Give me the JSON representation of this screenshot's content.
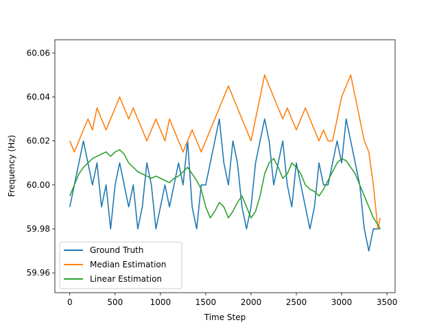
{
  "chart_data": {
    "type": "line",
    "title": "",
    "xlabel": "Time Step",
    "ylabel": "Frequency (Hz)",
    "xlim": [
      -165,
      3590
    ],
    "ylim": [
      59.951,
      60.066
    ],
    "xticks": [
      0,
      500,
      1000,
      1500,
      2000,
      2500,
      3000,
      3500
    ],
    "yticks": [
      59.96,
      59.98,
      60.0,
      60.02,
      60.04,
      60.06
    ],
    "xtick_labels": [
      "0",
      "500",
      "1000",
      "1500",
      "2000",
      "2500",
      "3000",
      "3500"
    ],
    "ytick_labels": [
      "59.96",
      "59.98",
      "60.00",
      "60.02",
      "60.04",
      "60.06"
    ],
    "grid": false,
    "legend_position": "lower-left",
    "series": [
      {
        "name": "Ground Truth",
        "color": "#1f77b4",
        "x": [
          0,
          50,
          100,
          150,
          200,
          250,
          300,
          350,
          400,
          450,
          500,
          550,
          600,
          650,
          700,
          750,
          800,
          850,
          900,
          950,
          1000,
          1050,
          1100,
          1150,
          1200,
          1250,
          1300,
          1350,
          1400,
          1450,
          1500,
          1550,
          1600,
          1650,
          1700,
          1750,
          1800,
          1850,
          1900,
          1950,
          2000,
          2050,
          2100,
          2150,
          2200,
          2250,
          2300,
          2350,
          2400,
          2450,
          2500,
          2550,
          2600,
          2650,
          2700,
          2750,
          2800,
          2850,
          2900,
          2950,
          3000,
          3050,
          3100,
          3150,
          3200,
          3250,
          3300,
          3350,
          3400,
          3425
        ],
        "values": [
          59.99,
          60.0,
          60.01,
          60.02,
          60.01,
          60.0,
          60.01,
          59.99,
          60.0,
          59.98,
          60.0,
          60.01,
          60.0,
          59.99,
          60.0,
          59.98,
          59.99,
          60.01,
          60.0,
          59.98,
          59.99,
          60.0,
          59.99,
          60.0,
          60.01,
          60.0,
          60.02,
          59.99,
          59.98,
          60.0,
          60.0,
          60.01,
          60.02,
          60.03,
          60.01,
          60.0,
          60.02,
          60.01,
          59.99,
          59.98,
          59.99,
          60.01,
          60.02,
          60.03,
          60.02,
          60.0,
          60.01,
          60.02,
          60.0,
          59.99,
          60.01,
          60.0,
          59.99,
          59.98,
          59.99,
          60.01,
          60.0,
          60.0,
          60.01,
          60.02,
          60.01,
          60.03,
          60.02,
          60.01,
          60.0,
          59.98,
          59.97,
          59.98,
          59.98,
          59.98
        ]
      },
      {
        "name": "Median Estimation",
        "color": "#ff7f0e",
        "x": [
          0,
          50,
          100,
          150,
          200,
          250,
          300,
          350,
          400,
          450,
          500,
          550,
          600,
          650,
          700,
          750,
          800,
          850,
          900,
          950,
          1000,
          1050,
          1100,
          1150,
          1200,
          1250,
          1300,
          1350,
          1400,
          1450,
          1500,
          1550,
          1600,
          1650,
          1700,
          1750,
          1800,
          1850,
          1900,
          1950,
          2000,
          2050,
          2100,
          2150,
          2200,
          2250,
          2300,
          2350,
          2400,
          2450,
          2500,
          2550,
          2600,
          2650,
          2700,
          2750,
          2800,
          2850,
          2900,
          2950,
          3000,
          3050,
          3100,
          3150,
          3200,
          3250,
          3300,
          3350,
          3400,
          3425
        ],
        "values": [
          60.02,
          60.015,
          60.02,
          60.025,
          60.03,
          60.025,
          60.035,
          60.03,
          60.025,
          60.03,
          60.035,
          60.04,
          60.035,
          60.03,
          60.035,
          60.03,
          60.025,
          60.02,
          60.025,
          60.03,
          60.025,
          60.02,
          60.03,
          60.025,
          60.02,
          60.015,
          60.02,
          60.025,
          60.02,
          60.015,
          60.02,
          60.025,
          60.03,
          60.035,
          60.04,
          60.045,
          60.04,
          60.035,
          60.03,
          60.025,
          60.02,
          60.03,
          60.04,
          60.05,
          60.045,
          60.04,
          60.035,
          60.03,
          60.035,
          60.03,
          60.025,
          60.03,
          60.035,
          60.03,
          60.025,
          60.02,
          60.025,
          60.02,
          60.02,
          60.03,
          60.04,
          60.045,
          60.05,
          60.04,
          60.03,
          60.02,
          60.015,
          60.0,
          59.98,
          59.985
        ]
      },
      {
        "name": "Linear Estimation",
        "color": "#2ca02c",
        "x": [
          0,
          50,
          100,
          150,
          200,
          250,
          300,
          350,
          400,
          450,
          500,
          550,
          600,
          650,
          700,
          750,
          800,
          850,
          900,
          950,
          1000,
          1050,
          1100,
          1150,
          1200,
          1250,
          1300,
          1350,
          1400,
          1450,
          1500,
          1550,
          1600,
          1650,
          1700,
          1750,
          1800,
          1850,
          1900,
          1950,
          2000,
          2050,
          2100,
          2150,
          2200,
          2250,
          2300,
          2350,
          2400,
          2450,
          2500,
          2550,
          2600,
          2650,
          2700,
          2750,
          2800,
          2850,
          2900,
          2950,
          3000,
          3050,
          3100,
          3150,
          3200,
          3250,
          3300,
          3350,
          3400,
          3425
        ],
        "values": [
          59.995,
          60.0,
          60.005,
          60.008,
          60.01,
          60.012,
          60.013,
          60.014,
          60.015,
          60.013,
          60.015,
          60.016,
          60.014,
          60.01,
          60.008,
          60.006,
          60.005,
          60.004,
          60.003,
          60.004,
          60.003,
          60.002,
          60.001,
          60.003,
          60.004,
          60.006,
          60.008,
          60.005,
          60.002,
          59.998,
          59.99,
          59.985,
          59.988,
          59.992,
          59.99,
          59.985,
          59.988,
          59.992,
          59.995,
          59.99,
          59.985,
          59.988,
          59.995,
          60.005,
          60.01,
          60.012,
          60.008,
          60.003,
          60.005,
          60.01,
          60.008,
          60.005,
          60.0,
          59.998,
          59.997,
          59.995,
          59.998,
          60.002,
          60.006,
          60.01,
          60.012,
          60.011,
          60.008,
          60.005,
          60.0,
          59.995,
          59.99,
          59.985,
          59.982,
          59.98
        ]
      }
    ]
  }
}
